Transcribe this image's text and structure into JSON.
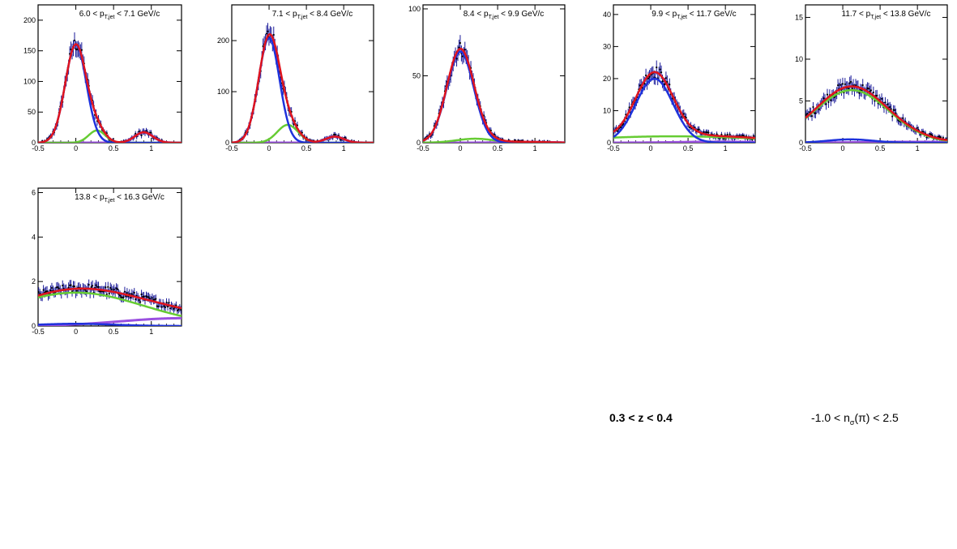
{
  "colors": {
    "data": "#1a1a99",
    "total": "#e0141e",
    "pion": "#1e32dc",
    "kaon": "#66cc33",
    "proton": "#9a50e0"
  },
  "labels": {
    "z_range": "0.3 < z < 0.4",
    "nsigma_prefix": "-1.0 < n",
    "nsigma_sub": "σ",
    "nsigma_suffix": "(π) < 2.5"
  },
  "chart_data": [
    {
      "type": "line",
      "title_pre": "6.0 < p",
      "title_sub": "T,jet",
      "title_post": " < 7.1 GeV/c",
      "xlim": [
        -0.5,
        1.4
      ],
      "ylim": [
        0,
        225
      ],
      "xticks": [
        "-0.5",
        "0",
        "0.5",
        "1"
      ],
      "yticks": [
        "0",
        "50",
        "100",
        "150",
        "200"
      ],
      "series": [
        {
          "role": "pion",
          "amp": 160,
          "mu": 0.0,
          "sigma": 0.14
        },
        {
          "role": "kaon",
          "amp": 20,
          "mu": 0.28,
          "sigma": 0.11
        },
        {
          "role": "proton",
          "amp": 17,
          "mu": 0.9,
          "sigma": 0.12
        }
      ]
    },
    {
      "type": "line",
      "title_pre": "7.1 < p",
      "title_sub": "T,jet",
      "title_post": " < 8.4 GeV/c",
      "xlim": [
        -0.5,
        1.4
      ],
      "ylim": [
        0,
        270
      ],
      "xticks": [
        "-0.5",
        "0",
        "0.5",
        "1"
      ],
      "yticks": [
        "0",
        "100",
        "200"
      ],
      "series": [
        {
          "role": "pion",
          "amp": 205,
          "mu": 0.0,
          "sigma": 0.14
        },
        {
          "role": "kaon",
          "amp": 35,
          "mu": 0.25,
          "sigma": 0.14
        },
        {
          "role": "proton",
          "amp": 12,
          "mu": 0.88,
          "sigma": 0.12
        }
      ]
    },
    {
      "type": "line",
      "title_pre": "8.4 < p",
      "title_sub": "T,jet",
      "title_post": " < 9.9 GeV/c",
      "xlim": [
        -0.5,
        1.4
      ],
      "ylim": [
        0,
        103
      ],
      "xticks": [
        "-0.5",
        "0",
        "0.5",
        "1"
      ],
      "yticks": [
        "0",
        "50",
        "100"
      ],
      "series": [
        {
          "role": "pion",
          "amp": 68,
          "mu": 0.0,
          "sigma": 0.18
        },
        {
          "role": "kaon",
          "amp": 3,
          "mu": 0.2,
          "sigma": 0.25
        },
        {
          "role": "proton",
          "amp": 0.6,
          "mu": 0.9,
          "sigma": 0.3
        }
      ]
    },
    {
      "type": "line",
      "title_pre": "9.9 < p",
      "title_sub": "T,jet",
      "title_post": " < 11.7 GeV/c",
      "xlim": [
        -0.5,
        1.4
      ],
      "ylim": [
        0,
        43
      ],
      "xticks": [
        "-0.5",
        "0",
        "0.5",
        "1"
      ],
      "yticks": [
        "0",
        "10",
        "20",
        "30",
        "40"
      ],
      "series": [
        {
          "role": "pion",
          "amp": 20,
          "mu": 0.05,
          "sigma": 0.25
        },
        {
          "role": "kaon",
          "amp": 2,
          "mu": 0.3,
          "sigma": 1.2
        },
        {
          "role": "proton",
          "amp": 0.3,
          "mu": 0.9,
          "sigma": 0.5
        }
      ]
    },
    {
      "type": "line",
      "title_pre": "11.7 < p",
      "title_sub": "T,jet",
      "title_post": " < 13.8 GeV/c",
      "xlim": [
        -0.5,
        1.4
      ],
      "ylim": [
        0,
        16.5
      ],
      "xticks": [
        "-0.5",
        "0",
        "0.5",
        "1"
      ],
      "yticks": [
        "0",
        "5",
        "10",
        "15"
      ],
      "series": [
        {
          "role": "pion",
          "amp": 0.4,
          "mu": 0.1,
          "sigma": 0.3
        },
        {
          "role": "kaon",
          "amp": 6.3,
          "mu": 0.12,
          "sigma": 0.5
        },
        {
          "role": "proton",
          "amp": 0.1,
          "mu": 0.9,
          "sigma": 0.6
        }
      ]
    },
    {
      "type": "line",
      "title_pre": "13.8 < p",
      "title_sub": "T,jet",
      "title_post": " < 16.3 GeV/c",
      "xlim": [
        -0.5,
        1.4
      ],
      "ylim": [
        0,
        6.2
      ],
      "xticks": [
        "-0.5",
        "0",
        "0.5",
        "1"
      ],
      "yticks": [
        "0",
        "2",
        "4",
        "6"
      ],
      "series": [
        {
          "role": "pion",
          "amp": 0.1,
          "mu": 0.0,
          "sigma": 0.5
        },
        {
          "role": "kaon",
          "amp": 1.5,
          "mu": 0.0,
          "sigma": 0.9
        },
        {
          "role": "proton",
          "amp": 0.35,
          "mu": 1.4,
          "sigma": 0.8
        }
      ]
    }
  ]
}
